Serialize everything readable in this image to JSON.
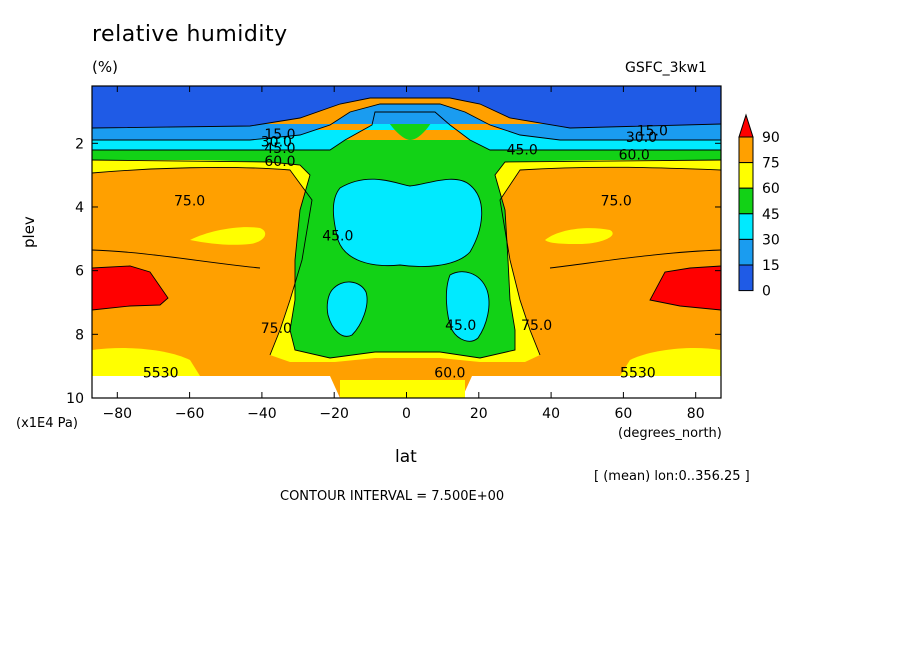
{
  "header": {
    "title": "relative humidity",
    "units": "(%)",
    "model": "GSFC_3kw1"
  },
  "footer": {
    "mean_note": "[ (mean) lon:0..356.25 ]",
    "contour_interval": "CONTOUR INTERVAL = 7.500E+00"
  },
  "colors": {
    "bin_0_15": "#1f5be6",
    "bin_15_30": "#1a9cf0",
    "bin_30_45": "#00eaff",
    "bin_45_60": "#12d216",
    "bin_60_75": "#ffff00",
    "bin_75_90": "#ffa000",
    "bin_90_plus": "#ff0000"
  },
  "chart_data": {
    "type": "heatmap",
    "title": "relative humidity",
    "units": "(%)",
    "xlabel": "lat",
    "xunits": "(degrees_north)",
    "ylabel": "plev",
    "yunits": "(x1E4 Pa)",
    "xlim": [
      -87,
      87
    ],
    "ylim": [
      10,
      0.2
    ],
    "x_ticks": [
      -80,
      -60,
      -40,
      -20,
      0,
      20,
      40,
      60,
      80
    ],
    "y_ticks": [
      2,
      4,
      6,
      8,
      10
    ],
    "colorbar": {
      "levels": [
        "90",
        "75",
        "60",
        "45",
        "30",
        "15",
        "0"
      ],
      "has_upper_arrow": true
    },
    "contour_labels": [
      {
        "text": "15.0",
        "x": -35,
        "y": 1.7
      },
      {
        "text": "30.0",
        "x": -36,
        "y": 1.95
      },
      {
        "text": "45.0",
        "x": -35,
        "y": 2.15
      },
      {
        "text": "60.0",
        "x": -35,
        "y": 2.55
      },
      {
        "text": "75.0",
        "x": -60,
        "y": 3.8
      },
      {
        "text": "45.0",
        "x": -19,
        "y": 4.9
      },
      {
        "text": "75.0",
        "x": -36,
        "y": 7.8
      },
      {
        "text": "45.0",
        "x": 15,
        "y": 7.7
      },
      {
        "text": "60.0",
        "x": 12,
        "y": 9.2
      },
      {
        "text": "75.0",
        "x": 36,
        "y": 7.7
      },
      {
        "text": "75.0",
        "x": 58,
        "y": 3.8
      },
      {
        "text": "45.0",
        "x": 32,
        "y": 2.2
      },
      {
        "text": "60.0",
        "x": 63,
        "y": 2.35
      },
      {
        "text": "30.0",
        "x": 65,
        "y": 1.8
      },
      {
        "text": "15.0",
        "x": 68,
        "y": 1.6
      },
      {
        "text": "5530",
        "x": -68,
        "y": 9.2
      },
      {
        "text": "5530",
        "x": 64,
        "y": 9.2
      }
    ],
    "grid": false,
    "legend": "right colorbar"
  }
}
